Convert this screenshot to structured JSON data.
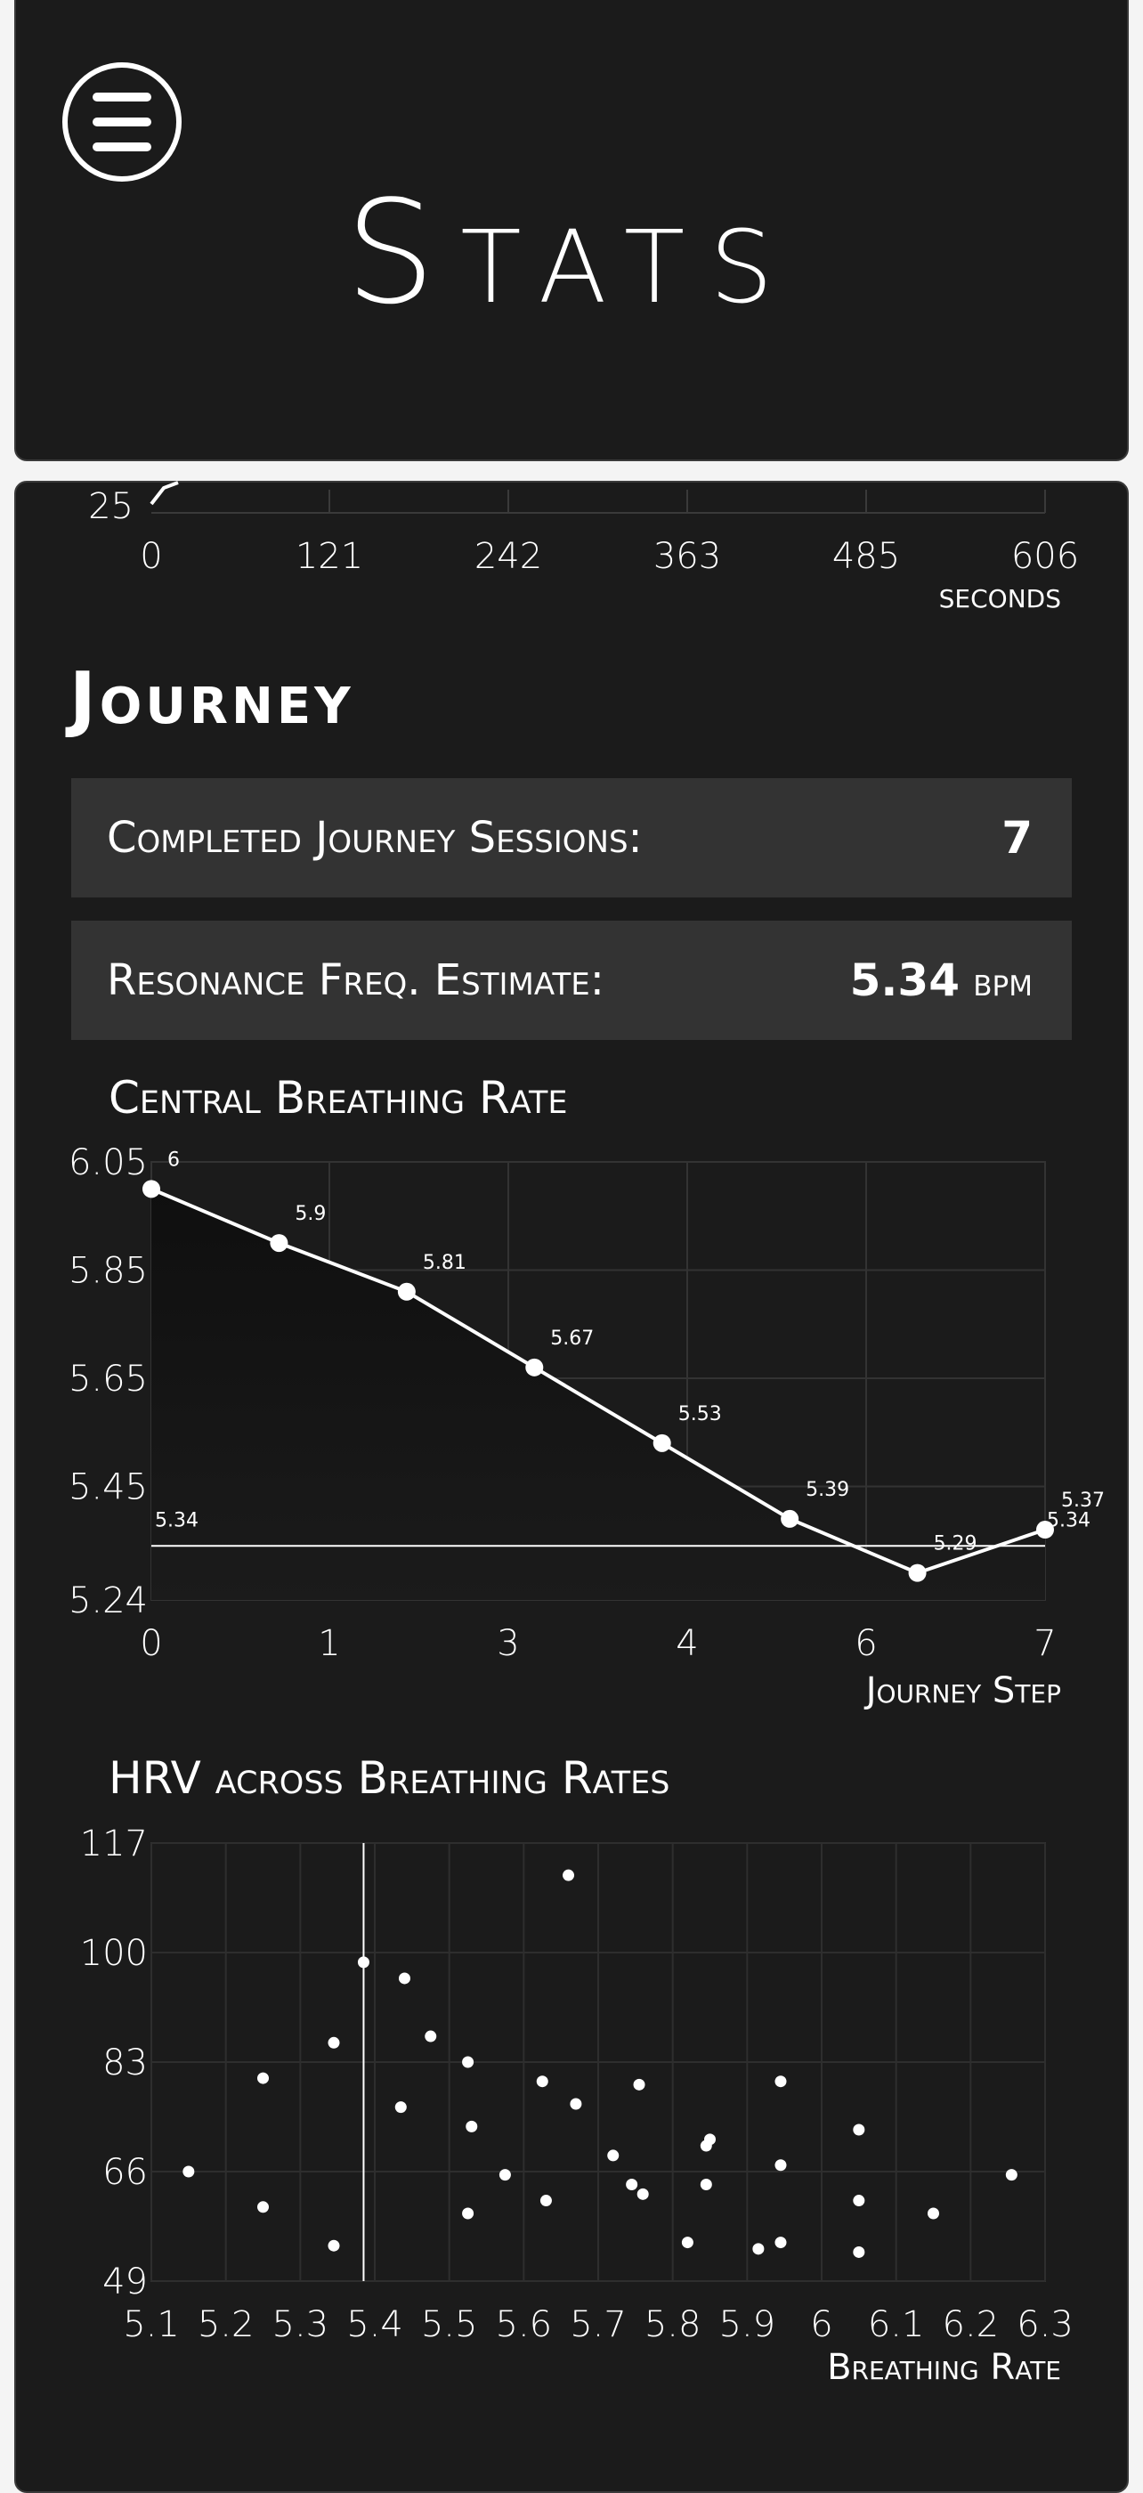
{
  "header": {
    "title": "Stats",
    "menu_icon": "hamburger-menu-icon"
  },
  "top_chart_fragment": {
    "y_tick": "25",
    "x_ticks": [
      "0",
      "121",
      "242",
      "363",
      "485",
      "606"
    ],
    "xlabel": "seconds"
  },
  "journey": {
    "title": "Journey",
    "completed_label": "Completed Journey Sessions:",
    "completed_value": "7",
    "resonance_label": "Resonance Freq. Estimate:",
    "resonance_value": "5.34",
    "resonance_unit": "bpm"
  },
  "chart_data": [
    {
      "type": "line",
      "title": "Central Breathing Rate",
      "xlabel": "Journey Step",
      "ylabel": "",
      "x_tick_labels": [
        "0",
        "1",
        "3",
        "4",
        "6",
        "7"
      ],
      "y_tick_labels": [
        "6.05",
        "5.85",
        "5.65",
        "5.45",
        "5.24"
      ],
      "ylim": [
        5.24,
        6.05
      ],
      "xlim": [
        0,
        7
      ],
      "x": [
        0,
        1,
        2,
        3,
        4,
        5,
        6,
        7
      ],
      "values": [
        6,
        5.9,
        5.81,
        5.67,
        5.53,
        5.39,
        5.29,
        5.37
      ],
      "value_labels": [
        "6",
        "5.9",
        "5.81",
        "5.67",
        "5.53",
        "5.39",
        "5.29",
        "5.37"
      ],
      "reference_line": {
        "value": 5.34,
        "label_left": "5.34",
        "label_right": "5.34"
      },
      "grid": true
    },
    {
      "type": "scatter",
      "title": "HRV across Breathing Rates",
      "xlabel": "Breathing Rate",
      "ylabel": "",
      "x_tick_labels": [
        "5.1",
        "5.2",
        "5.3",
        "5.4",
        "5.5",
        "5.6",
        "5.7",
        "5.8",
        "5.9",
        "6",
        "6.1",
        "6.2",
        "6.3"
      ],
      "y_tick_labels": [
        "117",
        "100",
        "83",
        "66",
        "49"
      ],
      "xlim": [
        5.1,
        6.3
      ],
      "ylim": [
        49,
        117
      ],
      "reference_line_x": 5.385,
      "grid": true,
      "points": [
        [
          5.15,
          66
        ],
        [
          5.25,
          80.5
        ],
        [
          5.25,
          60.5
        ],
        [
          5.345,
          86
        ],
        [
          5.345,
          54.5
        ],
        [
          5.385,
          98.5
        ],
        [
          5.435,
          76
        ],
        [
          5.44,
          96
        ],
        [
          5.475,
          87
        ],
        [
          5.525,
          83
        ],
        [
          5.53,
          73
        ],
        [
          5.525,
          59.5
        ],
        [
          5.575,
          65.5
        ],
        [
          5.625,
          80
        ],
        [
          5.63,
          61.5
        ],
        [
          5.66,
          112
        ],
        [
          5.67,
          76.5
        ],
        [
          5.72,
          68.5
        ],
        [
          5.745,
          64
        ],
        [
          5.755,
          79.5
        ],
        [
          5.76,
          62.5
        ],
        [
          5.82,
          55
        ],
        [
          5.845,
          70
        ],
        [
          5.85,
          71
        ],
        [
          5.845,
          64
        ],
        [
          5.915,
          54
        ],
        [
          5.945,
          80
        ],
        [
          5.945,
          67
        ],
        [
          5.945,
          55
        ],
        [
          6.05,
          72.5
        ],
        [
          6.05,
          61.5
        ],
        [
          6.05,
          53.5
        ],
        [
          6.15,
          59.5
        ],
        [
          6.255,
          65.5
        ]
      ]
    }
  ]
}
